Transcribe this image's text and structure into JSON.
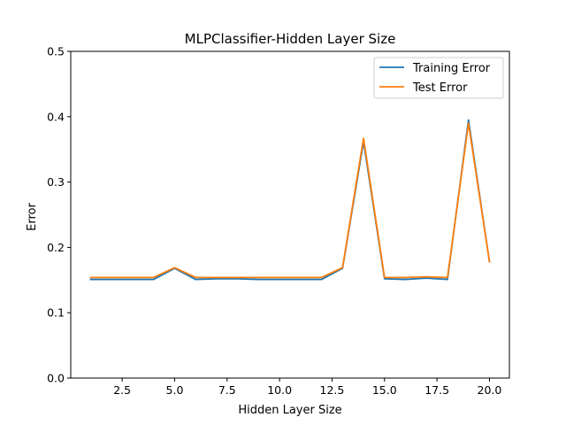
{
  "chart_data": {
    "type": "line",
    "title": "MLPClassifier-Hidden Layer Size",
    "xlabel": "Hidden Layer Size",
    "ylabel": "Error",
    "xlim": [
      0.05,
      20.95
    ],
    "ylim": [
      0,
      0.5
    ],
    "x_ticks": [
      2.5,
      5.0,
      7.5,
      10.0,
      12.5,
      15.0,
      17.5,
      20.0
    ],
    "x_tick_labels": [
      "2.5",
      "5.0",
      "7.5",
      "10.0",
      "12.5",
      "15.0",
      "17.5",
      "20.0"
    ],
    "y_ticks": [
      0.0,
      0.1,
      0.2,
      0.3,
      0.4,
      0.5
    ],
    "y_tick_labels": [
      "0.0",
      "0.1",
      "0.2",
      "0.3",
      "0.4",
      "0.5"
    ],
    "grid": false,
    "legend_position": "top-right",
    "x": [
      1,
      2,
      3,
      4,
      5,
      6,
      7,
      8,
      9,
      10,
      11,
      12,
      13,
      14,
      15,
      16,
      17,
      18,
      19,
      20
    ],
    "series": [
      {
        "name": "Training Error",
        "color": "#1f77b4",
        "values": [
          0.151,
          0.151,
          0.151,
          0.151,
          0.168,
          0.151,
          0.152,
          0.152,
          0.151,
          0.151,
          0.151,
          0.151,
          0.168,
          0.362,
          0.152,
          0.151,
          0.153,
          0.151,
          0.395,
          0.178
        ]
      },
      {
        "name": "Test Error",
        "color": "#ff7f0e",
        "values": [
          0.154,
          0.154,
          0.154,
          0.154,
          0.169,
          0.154,
          0.154,
          0.154,
          0.154,
          0.154,
          0.154,
          0.154,
          0.169,
          0.367,
          0.154,
          0.154,
          0.155,
          0.154,
          0.39,
          0.178
        ]
      }
    ]
  }
}
